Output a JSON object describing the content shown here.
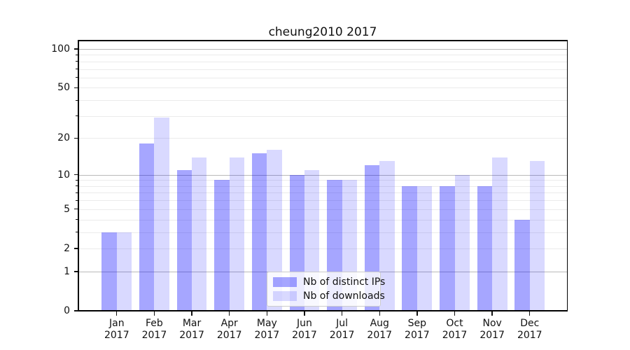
{
  "chart_data": {
    "type": "bar",
    "title": "cheung2010 2017",
    "categories": [
      "Jan",
      "Feb",
      "Mar",
      "Apr",
      "May",
      "Jun",
      "Jul",
      "Aug",
      "Sep",
      "Oct",
      "Nov",
      "Dec"
    ],
    "year_label": "2017",
    "series": [
      {
        "name": "Nb of distinct IPs",
        "color": "#0000ff",
        "alpha": 0.35,
        "values": [
          3,
          18,
          11,
          9,
          15,
          10,
          9,
          12,
          8,
          8,
          8,
          4
        ]
      },
      {
        "name": "Nb of downloads",
        "color": "#0000ff",
        "alpha": 0.15,
        "values": [
          3,
          29,
          14,
          14,
          16,
          11,
          9,
          13,
          8,
          10,
          14,
          13
        ]
      }
    ],
    "y_scale": "log1p",
    "y_axis": {
      "major_ticks": [
        0,
        1,
        2,
        5,
        10,
        20,
        50,
        100
      ],
      "minor_ticks": [
        3,
        4,
        6,
        7,
        8,
        9,
        30,
        40,
        60,
        70,
        80,
        90
      ],
      "grid_minor": [
        2,
        3,
        4,
        5,
        6,
        7,
        8,
        9,
        20,
        30,
        40,
        50,
        60,
        70,
        80,
        90
      ],
      "grid_major": [
        1,
        10,
        100
      ],
      "ylim": [
        0,
        116
      ]
    },
    "grid": true,
    "legend_position": "lower center",
    "colors": {
      "minor_grid": "#ebebeb",
      "major_grid": "#b9b9b9",
      "spine": "#000000",
      "text": "#111111",
      "legend_border": "#cccccc"
    }
  }
}
